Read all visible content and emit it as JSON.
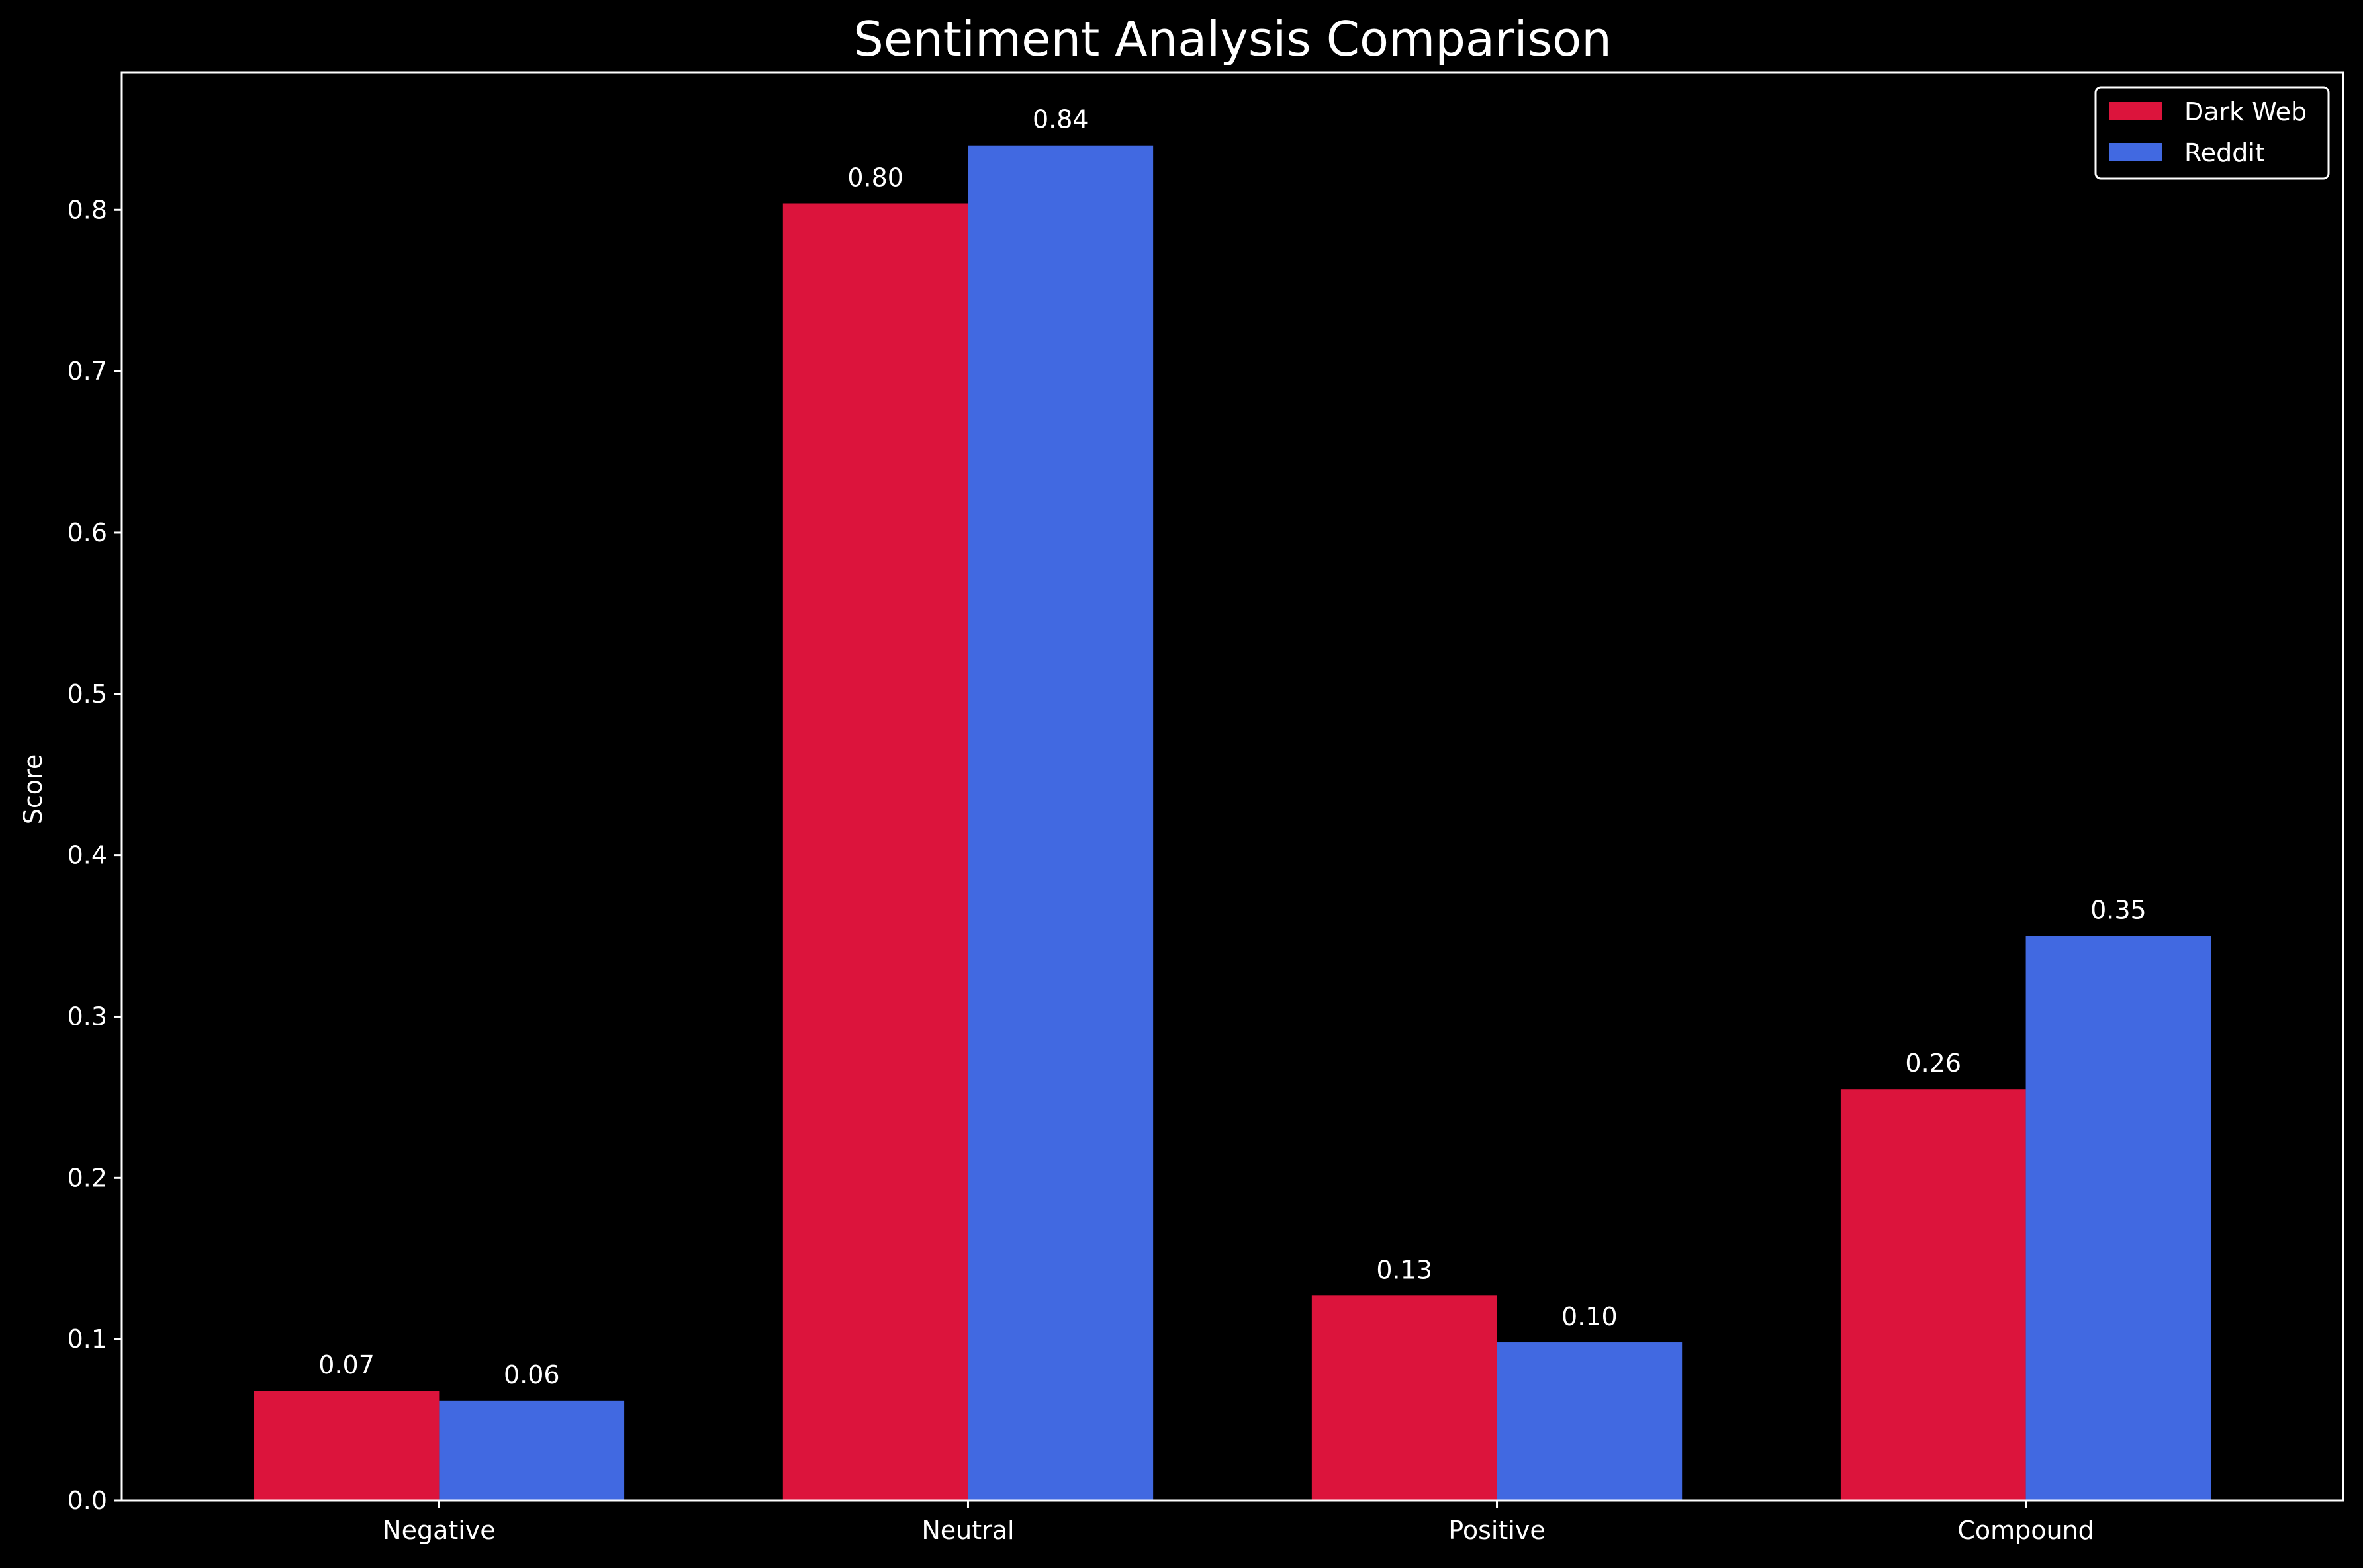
{
  "chart_data": {
    "type": "bar",
    "title": "Sentiment Analysis Comparison",
    "xlabel": "",
    "ylabel": "Score",
    "categories": [
      "Negative",
      "Neutral",
      "Positive",
      "Compound"
    ],
    "series": [
      {
        "name": "Dark Web",
        "color": "#dc143c",
        "values": [
          0.068,
          0.804,
          0.127,
          0.255
        ],
        "labels": [
          "0.07",
          "0.80",
          "0.13",
          "0.26"
        ]
      },
      {
        "name": "Reddit",
        "color": "#4169e1",
        "values": [
          0.062,
          0.84,
          0.098,
          0.35
        ],
        "labels": [
          "0.06",
          "0.84",
          "0.10",
          "0.35"
        ]
      }
    ],
    "ylim": [
      0,
      0.885
    ],
    "yticks": [
      "0.0",
      "0.1",
      "0.2",
      "0.3",
      "0.4",
      "0.5",
      "0.6",
      "0.7",
      "0.8"
    ],
    "grid": false,
    "legend": "top-right",
    "colors": {
      "background": "#000000",
      "foreground": "#ffffff"
    }
  }
}
